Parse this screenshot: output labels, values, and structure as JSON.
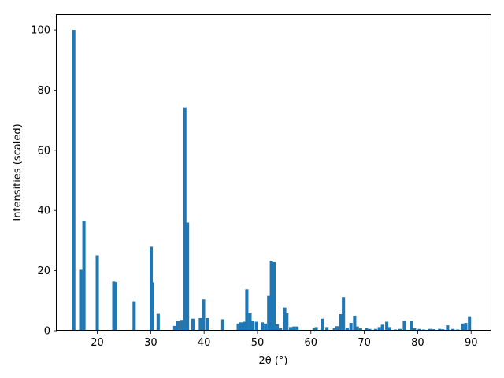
{
  "chart_data": {
    "type": "bar",
    "title": "",
    "xlabel": "2θ (°)",
    "ylabel": "Intensities (scaled)",
    "xlim": [
      12.4,
      93.8
    ],
    "ylim": [
      0,
      105
    ],
    "xticks": [
      20,
      30,
      40,
      50,
      60,
      70,
      80,
      90
    ],
    "yticks": [
      0,
      20,
      40,
      60,
      80,
      100
    ],
    "grid": false,
    "bar_width": 0.6,
    "color": "#1f77b4",
    "x": [
      15.6,
      16.9,
      17.5,
      20.0,
      23.1,
      23.4,
      26.9,
      30.1,
      30.3,
      31.4,
      34.5,
      35.1,
      35.8,
      36.4,
      36.9,
      37.9,
      39.3,
      39.9,
      40.6,
      43.5,
      46.4,
      46.9,
      47.5,
      48.0,
      48.6,
      49.1,
      49.8,
      50.9,
      51.5,
      52.1,
      52.6,
      53.1,
      53.7,
      54.3,
      55.1,
      55.5,
      56.2,
      56.8,
      57.4,
      60.6,
      61.0,
      62.1,
      63.0,
      64.4,
      64.9,
      65.6,
      66.1,
      66.8,
      67.5,
      68.2,
      68.7,
      69.3,
      70.4,
      71.0,
      72.1,
      72.8,
      73.4,
      74.2,
      74.7,
      75.8,
      76.7,
      77.5,
      78.8,
      79.4,
      80.3,
      81.1,
      82.3,
      83.0,
      84.1,
      84.7,
      85.6,
      86.6,
      87.5,
      88.4,
      89.0,
      89.7
    ],
    "values": [
      100,
      20.3,
      36.6,
      25.0,
      16.4,
      16.2,
      9.8,
      27.9,
      16.1,
      5.6,
      1.6,
      3.2,
      3.6,
      74.2,
      36.0,
      4.0,
      4.2,
      10.4,
      4.2,
      3.8,
      2.4,
      2.8,
      3.0,
      13.8,
      5.8,
      3.2,
      3.0,
      2.8,
      2.4,
      11.6,
      23.2,
      22.8,
      2.2,
      0.8,
      7.7,
      5.8,
      1.2,
      1.4,
      1.4,
      0.8,
      1.2,
      4.0,
      1.2,
      0.8,
      1.5,
      5.5,
      11.2,
      1.0,
      2.6,
      5.0,
      1.4,
      0.8,
      0.8,
      0.6,
      0.6,
      1.2,
      2.0,
      3.0,
      1.2,
      0.4,
      0.6,
      3.3,
      3.3,
      0.8,
      0.6,
      0.4,
      0.6,
      0.5,
      0.6,
      0.5,
      1.8,
      0.6,
      0.4,
      2.4,
      2.6,
      4.8
    ]
  }
}
